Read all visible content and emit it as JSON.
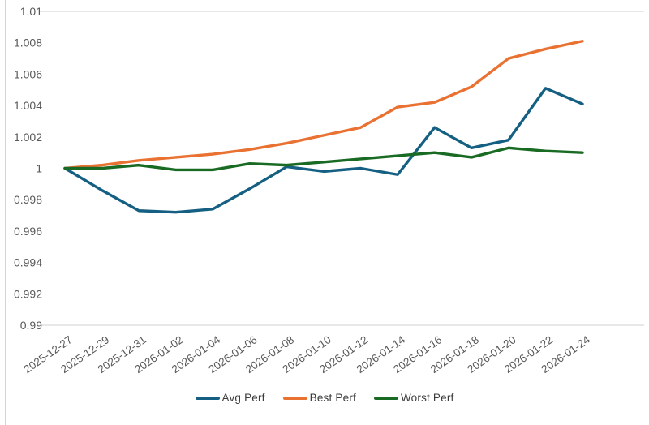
{
  "chart_data": {
    "type": "line",
    "categories": [
      "2025-12-27",
      "2025-12-29",
      "2025-12-31",
      "2026-01-02",
      "2026-01-04",
      "2026-01-06",
      "2026-01-08",
      "2026-01-10",
      "2026-01-12",
      "2026-01-14",
      "2026-01-16",
      "2026-01-18",
      "2026-01-20",
      "2026-01-22",
      "2026-01-24"
    ],
    "series": [
      {
        "name": "Avg Perf",
        "color": "#156082",
        "values": [
          1.0,
          0.9986,
          0.9973,
          0.9972,
          0.9974,
          0.9987,
          1.0001,
          0.9998,
          1.0,
          0.9996,
          1.0026,
          1.0013,
          1.0018,
          1.0051,
          1.0041
        ]
      },
      {
        "name": "Best Perf",
        "color": "#E97132",
        "values": [
          1.0,
          1.0002,
          1.0005,
          1.0007,
          1.0009,
          1.0012,
          1.0016,
          1.0021,
          1.0026,
          1.0039,
          1.0042,
          1.0052,
          1.007,
          1.0076,
          1.0081
        ]
      },
      {
        "name": "Worst Perf",
        "color": "#196B24",
        "values": [
          1.0,
          1.0,
          1.0002,
          0.9999,
          0.9999,
          1.0003,
          1.0002,
          1.0004,
          1.0006,
          1.0008,
          1.001,
          1.0007,
          1.0013,
          1.0011,
          1.001
        ]
      }
    ],
    "ylim": [
      0.99,
      1.01
    ],
    "ytick_labels": [
      "1.01",
      "1.008",
      "1.006",
      "1.004",
      "1.002",
      "1",
      "0.998",
      "0.996",
      "0.994",
      "0.992",
      "0.99"
    ],
    "xtick_rotation_deg": 35,
    "grid": false,
    "legend_position": "bottom",
    "plot_border_color": "#d9d9d9",
    "axis_label_color": "#595959",
    "legend_text_color": "#3b3b3b"
  }
}
